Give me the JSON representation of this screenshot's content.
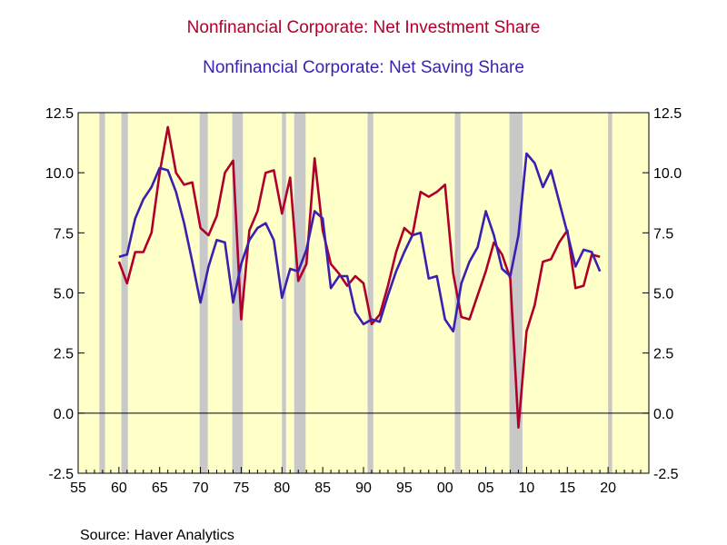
{
  "chart_data": {
    "type": "line",
    "title": "Nonfinancial Corporate: Net Investment Share",
    "subtitle": "Nonfinancial Corporate: Net Saving Share",
    "source": "Source:  Haver Analytics",
    "xlim": [
      1955,
      2025
    ],
    "ylim": [
      -2.5,
      12.5
    ],
    "y_ticks": [
      -2.5,
      0.0,
      2.5,
      5.0,
      7.5,
      10.0,
      12.5
    ],
    "y_tick_labels": [
      "-2.5",
      "0.0",
      "2.5",
      "5.0",
      "7.5",
      "10.0",
      "12.5"
    ],
    "x_ticks": [
      1955,
      1960,
      1965,
      1970,
      1975,
      1980,
      1985,
      1990,
      1995,
      2000,
      2005,
      2010,
      2015,
      2020
    ],
    "x_tick_labels": [
      "55",
      "60",
      "65",
      "70",
      "75",
      "80",
      "85",
      "90",
      "95",
      "00",
      "05",
      "10",
      "15",
      "20"
    ],
    "colors": {
      "plot_background": "#ffffc8",
      "recession": "#c8c8c8",
      "investment": "#b0002a",
      "saving": "#3a1fb0"
    },
    "recessions": [
      [
        1957.6,
        1958.3
      ],
      [
        1960.3,
        1961.1
      ],
      [
        1969.9,
        1970.9
      ],
      [
        1973.9,
        1975.2
      ],
      [
        1980.0,
        1980.5
      ],
      [
        1981.5,
        1982.9
      ],
      [
        1990.5,
        1991.2
      ],
      [
        2001.2,
        2001.9
      ],
      [
        2007.9,
        2009.5
      ],
      [
        2020.0,
        2020.5
      ]
    ],
    "series": [
      {
        "name": "Nonfinancial Corporate: Net Investment Share",
        "color": "#b0002a",
        "x": [
          1960,
          1961,
          1962,
          1963,
          1964,
          1965,
          1966,
          1967,
          1968,
          1969,
          1970,
          1971,
          1972,
          1973,
          1974,
          1975,
          1976,
          1977,
          1978,
          1979,
          1980,
          1981,
          1982,
          1983,
          1984,
          1985,
          1986,
          1987,
          1988,
          1989,
          1990,
          1991,
          1992,
          1993,
          1994,
          1995,
          1996,
          1997,
          1998,
          1999,
          2000,
          2001,
          2002,
          2003,
          2004,
          2005,
          2006,
          2007,
          2008,
          2009,
          2010,
          2011,
          2012,
          2013,
          2014,
          2015,
          2016,
          2017,
          2018,
          2019
        ],
        "values": [
          6.3,
          5.4,
          6.7,
          6.7,
          7.5,
          10.0,
          11.9,
          10.0,
          9.5,
          9.6,
          7.7,
          7.4,
          8.2,
          10.0,
          10.5,
          3.9,
          7.6,
          8.4,
          10.0,
          10.1,
          8.3,
          9.8,
          5.5,
          6.2,
          10.6,
          7.6,
          6.2,
          5.8,
          5.3,
          5.7,
          5.4,
          3.7,
          4.1,
          5.3,
          6.7,
          7.7,
          7.4,
          9.2,
          9.0,
          9.2,
          9.5,
          5.8,
          4.0,
          3.9,
          4.9,
          5.9,
          7.1,
          6.6,
          5.6,
          -0.6,
          3.4,
          4.5,
          6.3,
          6.4,
          7.1,
          7.6,
          5.2,
          5.3,
          6.6,
          6.5
        ]
      },
      {
        "name": "Nonfinancial Corporate: Net Saving Share",
        "color": "#3a1fb0",
        "x": [
          1960,
          1961,
          1962,
          1963,
          1964,
          1965,
          1966,
          1967,
          1968,
          1969,
          1970,
          1971,
          1972,
          1973,
          1974,
          1975,
          1976,
          1977,
          1978,
          1979,
          1980,
          1981,
          1982,
          1983,
          1984,
          1985,
          1986,
          1987,
          1988,
          1989,
          1990,
          1991,
          1992,
          1993,
          1994,
          1995,
          1996,
          1997,
          1998,
          1999,
          2000,
          2001,
          2002,
          2003,
          2004,
          2005,
          2006,
          2007,
          2008,
          2009,
          2010,
          2011,
          2012,
          2013,
          2014,
          2015,
          2016,
          2017,
          2018,
          2019
        ],
        "values": [
          6.5,
          6.6,
          8.1,
          8.9,
          9.4,
          10.2,
          10.1,
          9.2,
          7.9,
          6.3,
          4.6,
          6.1,
          7.2,
          7.1,
          4.6,
          6.2,
          7.2,
          7.7,
          7.9,
          7.2,
          4.8,
          6.0,
          5.9,
          6.8,
          8.4,
          8.1,
          5.2,
          5.7,
          5.7,
          4.2,
          3.7,
          3.9,
          3.8,
          4.9,
          5.9,
          6.7,
          7.4,
          7.5,
          5.6,
          5.7,
          3.9,
          3.4,
          5.4,
          6.3,
          6.9,
          8.4,
          7.4,
          6.0,
          5.7,
          7.4,
          10.8,
          10.4,
          9.4,
          10.1,
          8.8,
          7.5,
          6.1,
          6.8,
          6.7,
          5.9
        ]
      }
    ]
  }
}
